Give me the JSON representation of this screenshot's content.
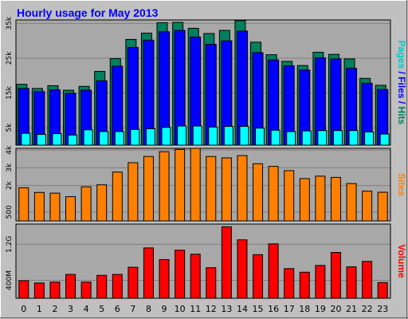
{
  "chart_data": {
    "type": "bar",
    "title": "Hourly usage for May 2013",
    "colors": {
      "background": "#c0c0c0",
      "plot": "#a8a8a8",
      "hits": "#00805c",
      "files": "#0000ff",
      "pages": "#00ffff",
      "sites": "#ff8000",
      "volume": "#ff0000",
      "title": "#0000ff"
    },
    "categories": [
      "0",
      "1",
      "2",
      "3",
      "4",
      "5",
      "6",
      "7",
      "8",
      "9",
      "10",
      "11",
      "12",
      "13",
      "14",
      "15",
      "16",
      "17",
      "18",
      "19",
      "20",
      "21",
      "22",
      "23"
    ],
    "panels": [
      {
        "name": "hits-files-pages",
        "ylim": [
          0,
          36000
        ],
        "ticks": [
          {
            "value": 5000,
            "label": "5k"
          },
          {
            "value": 15000,
            "label": "15k"
          },
          {
            "value": 25000,
            "label": "25k"
          },
          {
            "value": 35000,
            "label": "35k"
          }
        ],
        "side_label": [
          {
            "text": "Pages",
            "color": "#00c8c8"
          },
          {
            "text": " / ",
            "color": "#0000ff"
          },
          {
            "text": "Files",
            "color": "#0000ff"
          },
          {
            "text": " / ",
            "color": "#0000ff"
          },
          {
            "text": "Hits",
            "color": "#00805c"
          }
        ],
        "series": [
          {
            "name": "Hits",
            "color": "#00805c",
            "values": [
              17500,
              16300,
              17100,
              15800,
              16900,
              21200,
              24900,
              30400,
              32200,
              35200,
              35300,
              33600,
              32100,
              33000,
              35800,
              29600,
              26000,
              24100,
              22900,
              26700,
              26100,
              24800,
              19200,
              17200
            ]
          },
          {
            "name": "Files",
            "color": "#0000ff",
            "values": [
              16300,
              15400,
              15900,
              14900,
              15800,
              18500,
              22700,
              28100,
              30200,
              32600,
              33000,
              31100,
              29000,
              30000,
              32800,
              26600,
              24500,
              22800,
              21600,
              25100,
              24800,
              22100,
              17800,
              16000
            ]
          },
          {
            "name": "Pages",
            "color": "#00ffff",
            "values": [
              3400,
              3100,
              3300,
              2900,
              4400,
              3900,
              3900,
              4500,
              4700,
              5100,
              5500,
              5500,
              5200,
              5400,
              5400,
              4900,
              4300,
              3900,
              4100,
              4200,
              4200,
              4200,
              3800,
              3200
            ]
          }
        ]
      },
      {
        "name": "sites",
        "ylim": [
          0,
          4100
        ],
        "ticks": [
          {
            "value": 500,
            "label": "500"
          },
          {
            "value": 2000,
            "label": "2k"
          },
          {
            "value": 3000,
            "label": "3k"
          },
          {
            "value": 4000,
            "label": "4k"
          }
        ],
        "side_label": [
          {
            "text": "Sites",
            "color": "#ff8000"
          }
        ],
        "series": [
          {
            "name": "Sites",
            "color": "#ff8000",
            "values": [
              1870,
              1610,
              1570,
              1370,
              1930,
              2040,
              2760,
              3290,
              3640,
              3910,
              4040,
              4100,
              3640,
              3560,
              3690,
              3230,
              3080,
              2840,
              2390,
              2530,
              2460,
              2110,
              1680,
              1620
            ]
          }
        ]
      },
      {
        "name": "volume",
        "ylim": [
          0,
          1.65
        ],
        "ticks": [
          {
            "value": 0.4,
            "label": "400M"
          },
          {
            "value": 1.2,
            "label": "1.2G"
          }
        ],
        "side_label": [
          {
            "text": "Volume",
            "color": "#ff0000"
          }
        ],
        "series": [
          {
            "name": "Volume",
            "color": "#ff0000",
            "values": [
              0.39,
              0.34,
              0.36,
              0.53,
              0.36,
              0.51,
              0.53,
              0.69,
              1.12,
              0.86,
              1.07,
              0.98,
              0.68,
              1.59,
              1.3,
              0.97,
              1.21,
              0.66,
              0.58,
              0.73,
              1.02,
              0.7,
              0.82,
              0.35
            ]
          }
        ]
      }
    ]
  }
}
